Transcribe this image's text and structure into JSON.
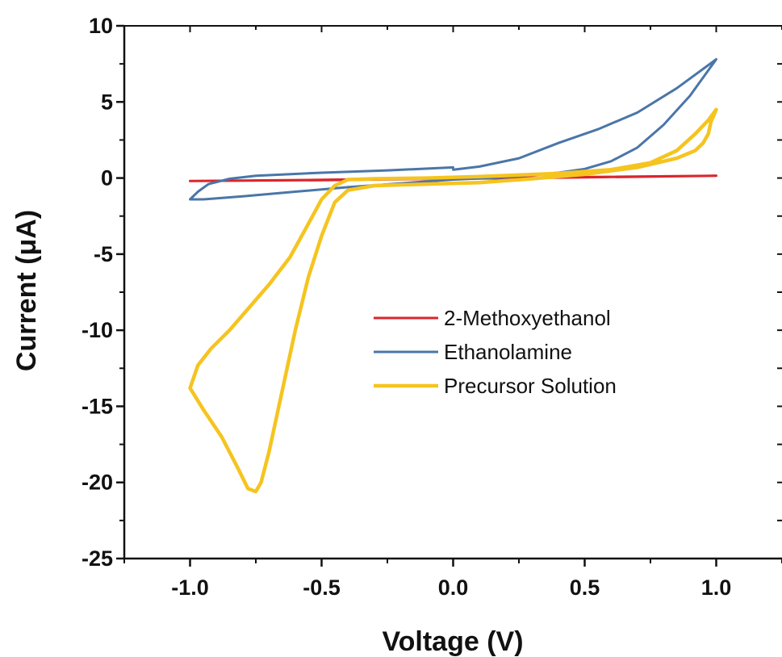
{
  "chart_data": {
    "type": "line",
    "xlabel": "Voltage (V)",
    "ylabel": "Current (μA)",
    "xlim": [
      -1.25,
      1.25
    ],
    "ylim": [
      -25,
      10
    ],
    "x_ticks": [
      -1.0,
      -0.5,
      0.0,
      0.5,
      1.0
    ],
    "x_tick_labels": [
      "-1.0",
      "-0.5",
      "0.0",
      "0.5",
      "1.0"
    ],
    "y_ticks": [
      10,
      5,
      0,
      -5,
      -10,
      -15,
      -20,
      -25
    ],
    "y_tick_labels": [
      "10",
      "5",
      "0",
      "-5",
      "-10",
      "-15",
      "-20",
      "-25"
    ],
    "grid": false,
    "legend_position": "center-right",
    "series": [
      {
        "name": "2-Methoxyethanol",
        "color": "#d9262c",
        "points": [
          [
            -1.0,
            -0.2
          ],
          [
            -0.5,
            -0.12
          ],
          [
            0.0,
            -0.02
          ],
          [
            0.5,
            0.06
          ],
          [
            1.0,
            0.15
          ],
          [
            0.5,
            0.04
          ],
          [
            0.0,
            -0.05
          ],
          [
            -0.5,
            -0.14
          ],
          [
            -1.0,
            -0.2
          ]
        ]
      },
      {
        "name": "Ethanolamine",
        "color": "#4a76a8",
        "points": [
          [
            0.0,
            0.55
          ],
          [
            0.1,
            0.75
          ],
          [
            0.25,
            1.3
          ],
          [
            0.4,
            2.3
          ],
          [
            0.55,
            3.2
          ],
          [
            0.7,
            4.3
          ],
          [
            0.85,
            5.9
          ],
          [
            1.0,
            7.8
          ],
          [
            0.9,
            5.4
          ],
          [
            0.8,
            3.5
          ],
          [
            0.7,
            2.0
          ],
          [
            0.6,
            1.1
          ],
          [
            0.5,
            0.6
          ],
          [
            0.4,
            0.35
          ],
          [
            0.2,
            0.05
          ],
          [
            0.0,
            -0.1
          ],
          [
            -0.2,
            -0.35
          ],
          [
            -0.4,
            -0.6
          ],
          [
            -0.6,
            -0.9
          ],
          [
            -0.8,
            -1.2
          ],
          [
            -0.95,
            -1.4
          ],
          [
            -1.0,
            -1.4
          ],
          [
            -0.97,
            -0.9
          ],
          [
            -0.93,
            -0.4
          ],
          [
            -0.85,
            -0.05
          ],
          [
            -0.75,
            0.15
          ],
          [
            -0.5,
            0.35
          ],
          [
            -0.25,
            0.5
          ],
          [
            0.0,
            0.7
          ]
        ]
      },
      {
        "name": "Precursor Solution",
        "color": "#f5c41f",
        "points": [
          [
            1.0,
            4.5
          ],
          [
            0.98,
            3.7
          ],
          [
            0.97,
            2.9
          ],
          [
            0.95,
            2.3
          ],
          [
            0.92,
            1.8
          ],
          [
            0.85,
            1.3
          ],
          [
            0.7,
            0.7
          ],
          [
            0.5,
            0.25
          ],
          [
            0.3,
            -0.05
          ],
          [
            0.1,
            -0.3
          ],
          [
            -0.1,
            -0.4
          ],
          [
            -0.3,
            -0.5
          ],
          [
            -0.4,
            -0.8
          ],
          [
            -0.45,
            -1.6
          ],
          [
            -0.5,
            -3.8
          ],
          [
            -0.55,
            -6.5
          ],
          [
            -0.6,
            -10.0
          ],
          [
            -0.65,
            -14.0
          ],
          [
            -0.7,
            -18.0
          ],
          [
            -0.73,
            -20.0
          ],
          [
            -0.75,
            -20.6
          ],
          [
            -0.78,
            -20.4
          ],
          [
            -0.82,
            -19.0
          ],
          [
            -0.88,
            -17.0
          ],
          [
            -0.95,
            -15.2
          ],
          [
            -1.0,
            -13.8
          ],
          [
            -0.97,
            -12.3
          ],
          [
            -0.92,
            -11.2
          ],
          [
            -0.85,
            -10.0
          ],
          [
            -0.77,
            -8.4
          ],
          [
            -0.7,
            -7.0
          ],
          [
            -0.62,
            -5.2
          ],
          [
            -0.55,
            -3.0
          ],
          [
            -0.5,
            -1.4
          ],
          [
            -0.45,
            -0.5
          ],
          [
            -0.4,
            -0.1
          ],
          [
            -0.3,
            -0.05
          ],
          [
            -0.1,
            0.0
          ],
          [
            0.1,
            0.1
          ],
          [
            0.4,
            0.3
          ],
          [
            0.6,
            0.55
          ],
          [
            0.75,
            1.0
          ],
          [
            0.85,
            1.8
          ],
          [
            0.92,
            2.9
          ],
          [
            0.97,
            3.8
          ],
          [
            1.0,
            4.5
          ]
        ]
      }
    ]
  }
}
